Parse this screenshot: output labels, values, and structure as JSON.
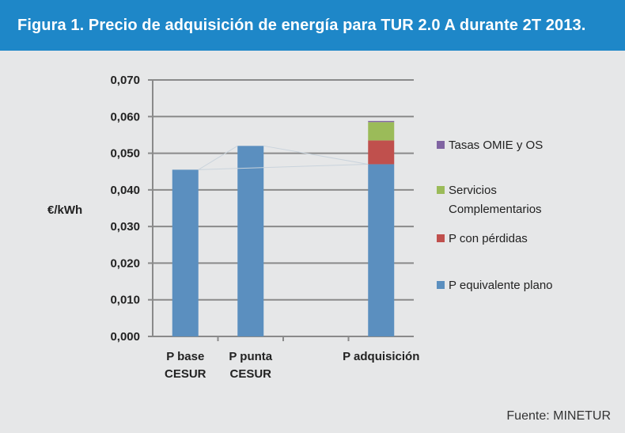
{
  "header": {
    "title": "Figura 1. Precio de adquisición de energía para TUR 2.0 A durante 2T 2013."
  },
  "source": "Fuente: MINETUR",
  "colors": {
    "header_bg": "#1e87c8",
    "background": "#e6e7e8",
    "P equivalente plano": "#5b8fbf",
    "P con pérdidas": "#c0504d",
    "Servicios Complementarios": "#9bbb59",
    "Tasas OMIE y OS": "#8064a2"
  },
  "chart_data": {
    "type": "bar",
    "stacked": true,
    "ylabel": "€/kWh",
    "ylim": [
      0,
      0.07
    ],
    "yticks": [
      "0,000",
      "0,010",
      "0,020",
      "0,030",
      "0,040",
      "0,050",
      "0,060",
      "0,070"
    ],
    "grid": true,
    "legend_position": "right",
    "categories": [
      {
        "lines": [
          "P base",
          "CESUR"
        ]
      },
      {
        "lines": [
          "P punta",
          "CESUR"
        ]
      },
      {
        "lines": []
      },
      {
        "lines": [
          "P adquisición"
        ]
      }
    ],
    "series": [
      {
        "name": "P equivalente plano",
        "values": [
          0.0455,
          0.052,
          null,
          0.047
        ]
      },
      {
        "name": "P con pérdidas",
        "values": [
          null,
          null,
          null,
          0.0065
        ]
      },
      {
        "name": "Servicios Complementarios",
        "values": [
          null,
          null,
          null,
          0.005
        ]
      },
      {
        "name": "Tasas OMIE y OS",
        "values": [
          null,
          null,
          null,
          0.0003
        ]
      }
    ],
    "legend_order": [
      {
        "series": 3,
        "lines": [
          "Tasas OMIE y OS"
        ]
      },
      {
        "series": 2,
        "lines": [
          "Servicios",
          "Complementarios"
        ]
      },
      {
        "series": 1,
        "lines": [
          "P con pérdidas"
        ]
      },
      {
        "series": 0,
        "lines": [
          "P equivalente plano"
        ]
      }
    ]
  }
}
